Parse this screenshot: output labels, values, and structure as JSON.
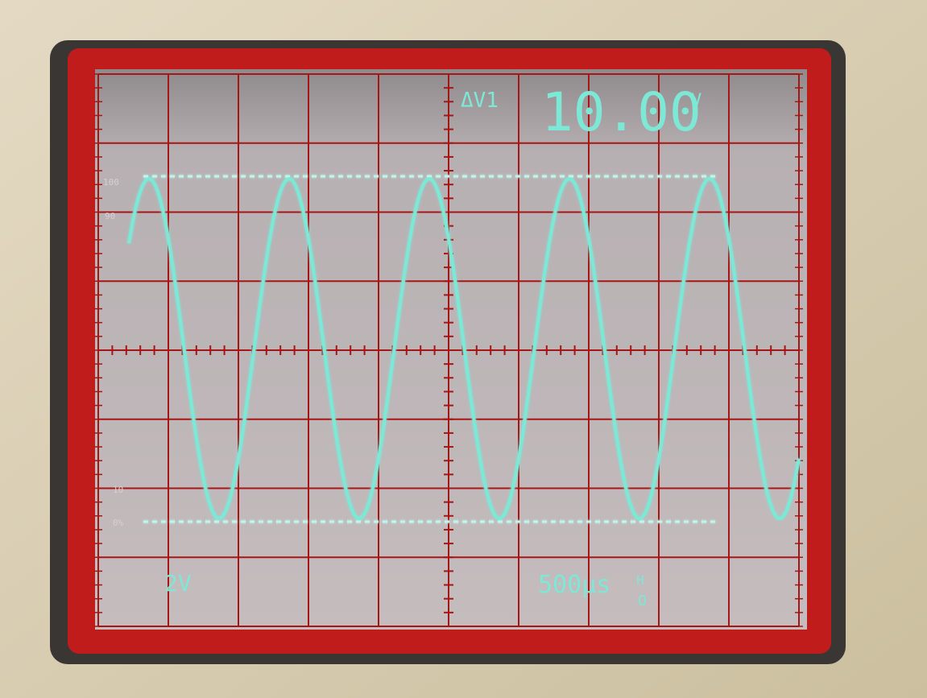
{
  "readout": {
    "label": "ΔV1",
    "value": "10.00",
    "unit": "V"
  },
  "graticule_labels": {
    "top": "100",
    "upper": "90",
    "lower": "10",
    "bottom": "0%"
  },
  "scale": {
    "volts": "2V",
    "time": "500μs",
    "trigger_top": "H",
    "trigger_bottom": "O"
  }
}
